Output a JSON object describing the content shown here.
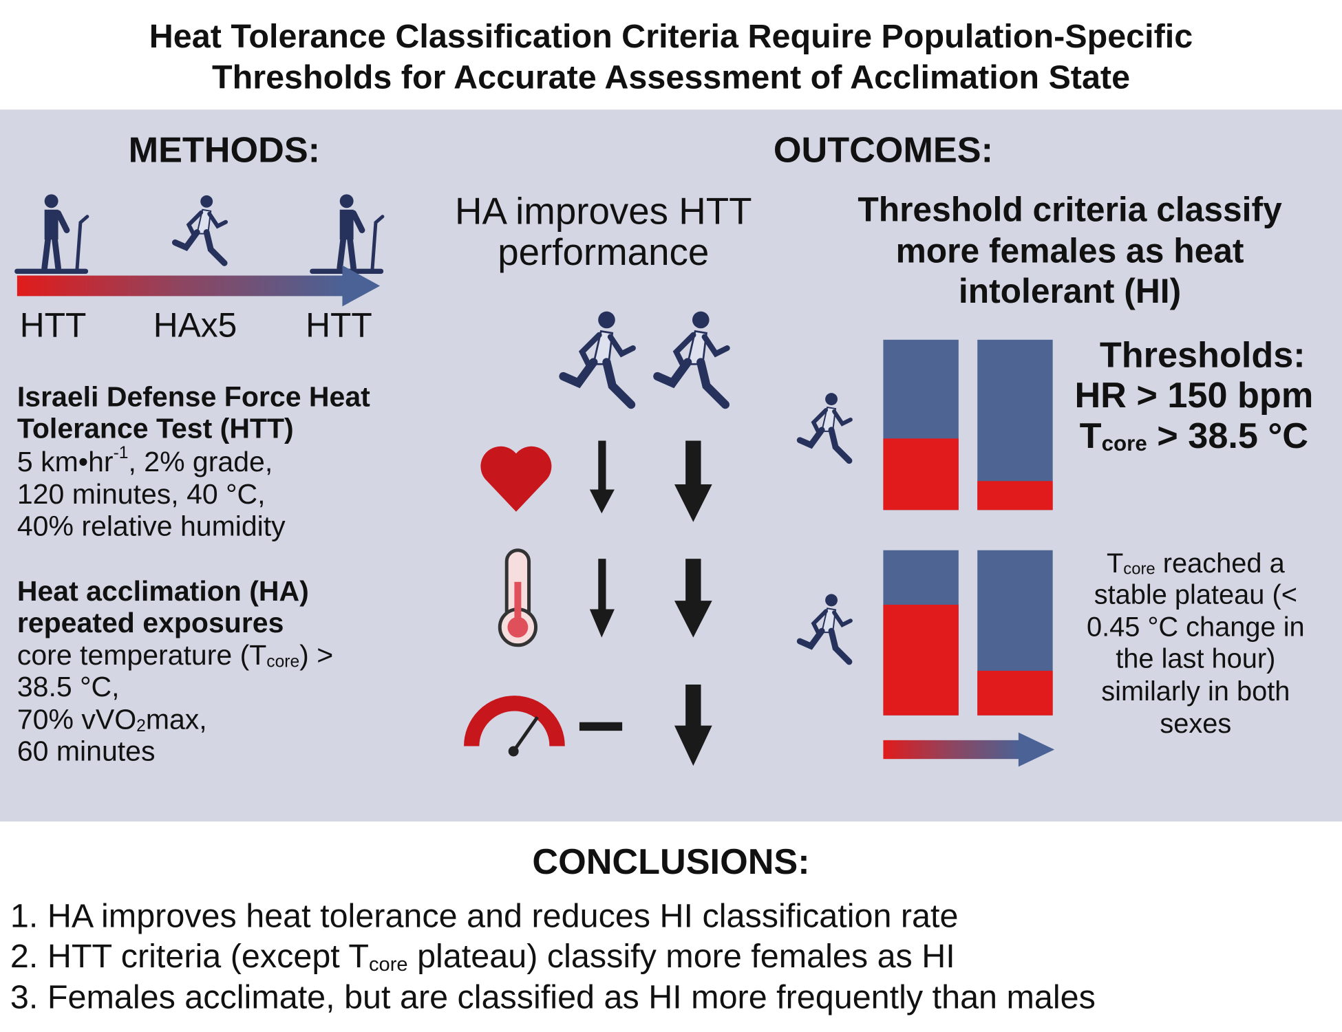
{
  "header": {
    "title": [
      "Heat Tolerance Classification Criteria Require Population-Specific",
      "Thresholds for Accurate Assessment of Acclimation State"
    ]
  },
  "methods": {
    "heading": "METHODS:",
    "timeline": [
      "HTT",
      "HAx5",
      "HTT"
    ],
    "htt": {
      "title": [
        "Israeli Defense Force Heat",
        "Tolerance Test (HTT)"
      ],
      "lines": [
        [
          "5 km•hr",
          "-1",
          ", 2% grade,"
        ],
        [
          "120 minutes, 40 °C,"
        ],
        [
          "40% relative humidity"
        ]
      ]
    },
    "ha": {
      "title": [
        "Heat acclimation (HA)",
        "repeated exposures"
      ],
      "lines": [
        [
          "core temperature (T",
          "core",
          ") >"
        ],
        [
          "38.5 °C,"
        ],
        [
          "70% vVO",
          "2",
          "max,"
        ],
        [
          "60 minutes"
        ]
      ]
    }
  },
  "outcomes": {
    "heading": "OUTCOMES:",
    "performance": {
      "title": [
        "HA improves HTT",
        "performance"
      ]
    },
    "classification": {
      "title": [
        "Threshold criteria classify",
        "more females as heat",
        "intolerant (HI)"
      ],
      "thresholds": [
        [
          "Thresholds:"
        ],
        [
          "HR > 150 bpm"
        ],
        [
          "T",
          "core",
          " > 38.5 °C"
        ]
      ],
      "plateau": [
        [
          "T",
          "core",
          " reached a"
        ],
        [
          "stable plateau (<"
        ],
        [
          "0.45 °C change in"
        ],
        [
          "the last hour)"
        ],
        [
          "similarly in both"
        ],
        [
          "sexes"
        ]
      ],
      "ylim": [
        0,
        100
      ],
      "threshold_bars": [
        42,
        17
      ],
      "plateau_bars": [
        67,
        27
      ]
    }
  },
  "conclusions": {
    "heading": "CONCLUSIONS:",
    "items": [
      [
        "1. HA improves heat tolerance and reduces HI classification rate"
      ],
      [
        "2. HTT criteria (except T",
        "core",
        " plateau) classify more females as HI"
      ],
      [
        "3. Females acclimate, but are classified as HI more frequently than males"
      ]
    ]
  }
}
